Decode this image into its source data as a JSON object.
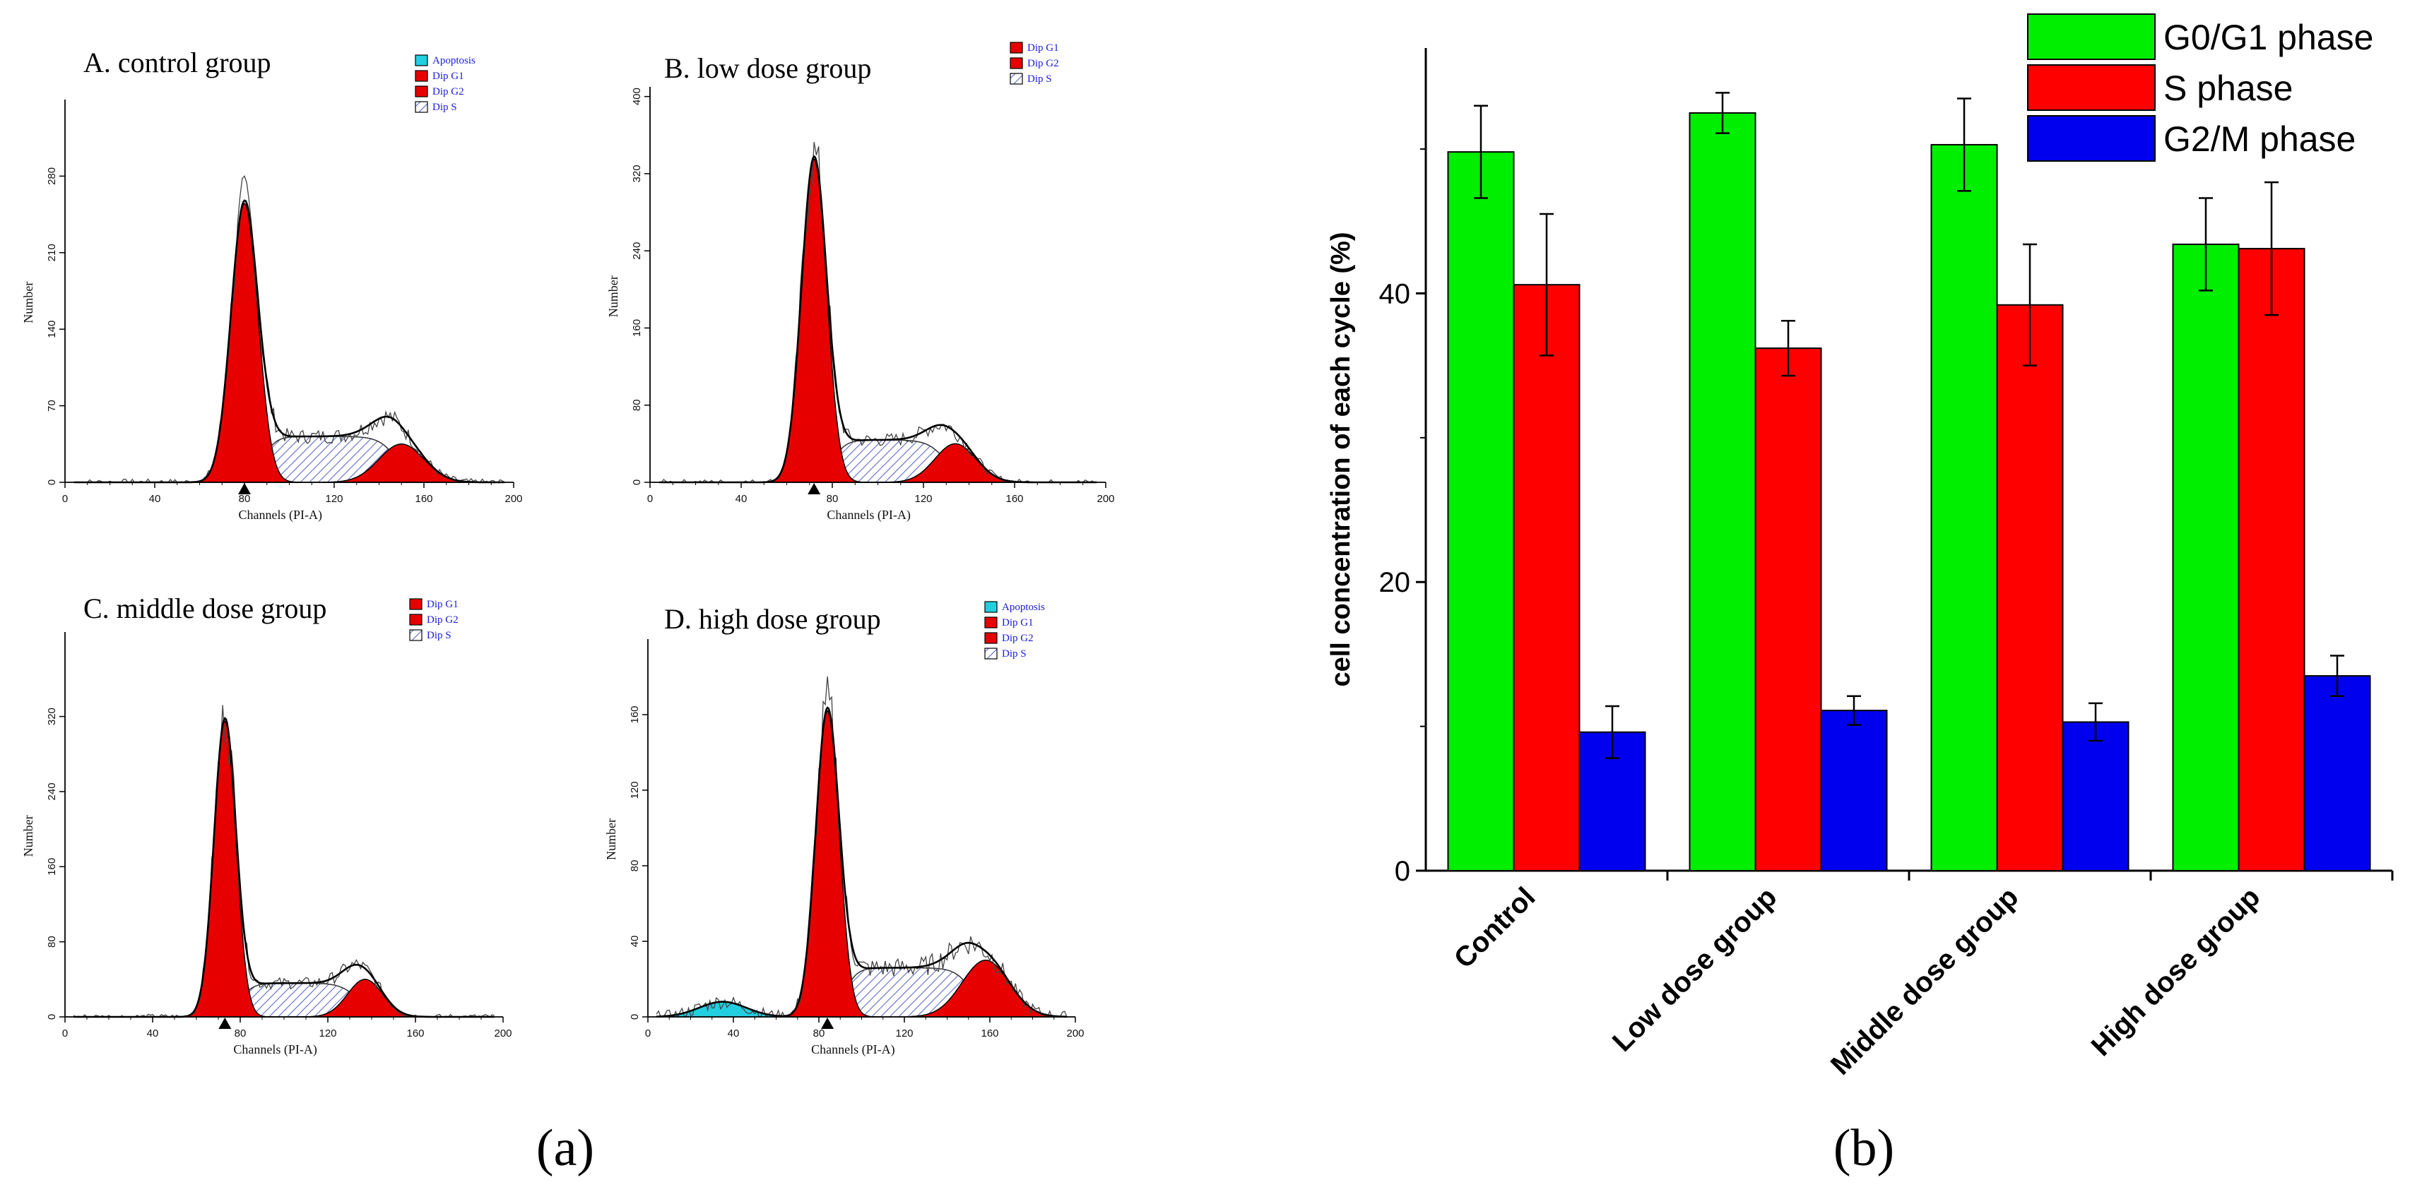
{
  "figure": {
    "label_a": "(a)",
    "label_b": "(b)"
  },
  "colors": {
    "g0g1": "#00ee00",
    "s": "#ff0000",
    "g2m": "#0000ee",
    "dip_g1": "#e60000",
    "dip_g2": "#e60000",
    "apoptosis": "#22cfe0",
    "dip_s_hatch": "#6a78c8",
    "legend_text": "#1a1adb"
  },
  "chart_data": [
    {
      "type": "area",
      "id": "A",
      "title": "A. control group",
      "xlabel": "Channels (PI-A)",
      "ylabel": "Number",
      "xlim": [
        0,
        200
      ],
      "ylim": [
        0,
        350
      ],
      "x_ticks": [
        "0",
        "40",
        "80",
        "120",
        "160",
        "200"
      ],
      "y_ticks": [
        "0",
        "70",
        "140",
        "210",
        "280"
      ],
      "y_tick_values": [
        0,
        70,
        140,
        210,
        280
      ],
      "legend": [
        "Apoptosis",
        "Dip G1",
        "Dip G2",
        "Dip S"
      ],
      "marker_channel": 80,
      "peaks": {
        "g1_center": 80,
        "g1_sigma": 6,
        "g1_height": 255,
        "g2_center": 150,
        "g2_sigma": 10,
        "g2_height": 35,
        "s_start": 88,
        "s_end": 148,
        "s_height": 42
      }
    },
    {
      "type": "area",
      "id": "B",
      "title": "B. low dose group",
      "xlabel": "Channels (PI-A)",
      "ylabel": "Number",
      "xlim": [
        0,
        200
      ],
      "ylim": [
        0,
        410
      ],
      "x_ticks": [
        "0",
        "40",
        "80",
        "120",
        "160",
        "200"
      ],
      "y_ticks": [
        "0",
        "80",
        "160",
        "240",
        "320",
        "400"
      ],
      "y_tick_values": [
        0,
        80,
        160,
        240,
        320,
        400
      ],
      "legend": [
        "Dip G1",
        "Dip G2",
        "Dip S"
      ],
      "marker_channel": 72,
      "peaks": {
        "g1_center": 72,
        "g1_sigma": 5.5,
        "g1_height": 335,
        "g2_center": 134,
        "g2_sigma": 9,
        "g2_height": 40,
        "s_start": 80,
        "s_end": 130,
        "s_height": 44
      }
    },
    {
      "type": "area",
      "id": "C",
      "title": "C. middle dose group",
      "xlabel": "Channels (PI-A)",
      "ylabel": "Number",
      "xlim": [
        0,
        200
      ],
      "ylim": [
        0,
        410
      ],
      "x_ticks": [
        "0",
        "40",
        "80",
        "120",
        "160",
        "200"
      ],
      "y_ticks": [
        "0",
        "80",
        "160",
        "240",
        "320"
      ],
      "y_tick_values": [
        0,
        80,
        160,
        240,
        320
      ],
      "legend": [
        "Dip G1",
        "Dip G2",
        "Dip S"
      ],
      "marker_channel": 73,
      "peaks": {
        "g1_center": 73,
        "g1_sigma": 5,
        "g1_height": 315,
        "g2_center": 137,
        "g2_sigma": 8,
        "g2_height": 40,
        "s_start": 80,
        "s_end": 134,
        "s_height": 36
      }
    },
    {
      "type": "area",
      "id": "D",
      "title": "D. high dose group",
      "xlabel": "Channels (PI-A)",
      "ylabel": "Number",
      "xlim": [
        0,
        200
      ],
      "ylim": [
        0,
        200
      ],
      "x_ticks": [
        "0",
        "40",
        "80",
        "120",
        "160",
        "200"
      ],
      "y_ticks": [
        "0",
        "40",
        "80",
        "120",
        "160"
      ],
      "y_tick_values": [
        0,
        40,
        80,
        120,
        160
      ],
      "legend": [
        "Apoptosis",
        "Dip G1",
        "Dip G2",
        "Dip S"
      ],
      "marker_channel": 84,
      "peaks": {
        "g1_center": 84,
        "g1_sigma": 5.5,
        "g1_height": 162,
        "g2_center": 158,
        "g2_sigma": 11,
        "g2_height": 30,
        "s_start": 92,
        "s_end": 152,
        "s_height": 26,
        "apo_center": 35,
        "apo_sigma": 11,
        "apo_height": 8
      }
    },
    {
      "type": "bar",
      "id": "b",
      "ylabel": "cell concentration of each cycle (%)",
      "categories": [
        "Control",
        "Low dose group",
        "Middle dose group",
        "High dose group"
      ],
      "ylim": [
        0,
        57
      ],
      "y_ticks": [
        "0",
        "20",
        "40"
      ],
      "y_tick_values": [
        0,
        20,
        40
      ],
      "series": [
        {
          "name": "G0/G1 phase",
          "values": [
            49.8,
            52.5,
            50.3,
            43.4
          ],
          "errors": [
            3.2,
            1.4,
            3.2,
            3.2
          ]
        },
        {
          "name": "S phase",
          "values": [
            40.6,
            36.2,
            39.2,
            43.1
          ],
          "errors": [
            4.9,
            1.9,
            4.2,
            4.6
          ]
        },
        {
          "name": "G2/M phase",
          "values": [
            9.6,
            11.1,
            10.3,
            13.5
          ],
          "errors": [
            1.8,
            1.0,
            1.3,
            1.4
          ]
        }
      ]
    }
  ]
}
